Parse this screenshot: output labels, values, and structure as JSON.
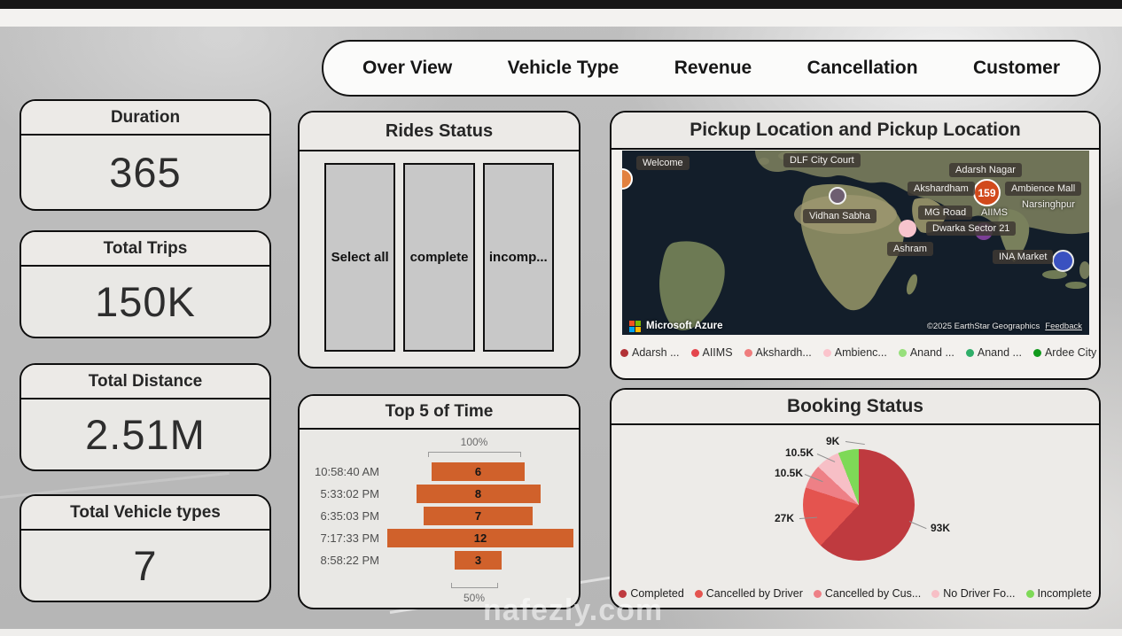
{
  "nav": {
    "tabs": [
      "Over View",
      "Vehicle Type",
      "Revenue",
      "Cancellation",
      "Customer"
    ]
  },
  "kpis": [
    {
      "title": "Duration",
      "value": "365"
    },
    {
      "title": "Total Trips",
      "value": "150K"
    },
    {
      "title": "Total Distance",
      "value": "2.51M"
    },
    {
      "title": "Total Vehicle types",
      "value": "7"
    }
  ],
  "panels": {
    "rides_status": {
      "title": "Rides Status",
      "options": [
        "Select all",
        "complete",
        "incomp..."
      ]
    },
    "map": {
      "title": "Pickup Location and Pickup Location",
      "labels": [
        "Welcome",
        "DLF City Court",
        "Adarsh Nagar",
        "Akshardham",
        "Ambience Mall",
        "Narsinghpur",
        "MG Road",
        "AIIMS",
        "Vidhan Sabha",
        "Dwarka Sector 21",
        "Ashram",
        "INA Market"
      ],
      "bubble_value": "159",
      "attribution": {
        "brand": "Microsoft Azure",
        "copyright": "©2025 EarthStar Geographics",
        "feedback": "Feedback"
      },
      "legend": [
        {
          "label": "Adarsh ...",
          "color": "#b23136"
        },
        {
          "label": "AIIMS",
          "color": "#e4464d"
        },
        {
          "label": "Akshardh...",
          "color": "#ef7d7d"
        },
        {
          "label": "Ambienc...",
          "color": "#fbc4cc"
        },
        {
          "label": "Anand ...",
          "color": "#97e07c"
        },
        {
          "label": "Anand ...",
          "color": "#2fae69"
        },
        {
          "label": "Ardee City",
          "color": "#119a1c"
        }
      ]
    },
    "top5": {
      "title": "Top 5 of Time"
    },
    "booking": {
      "title": "Booking Status"
    }
  },
  "chart_data": [
    {
      "type": "bar",
      "subtype": "funnel",
      "title": "Top 5 of Time",
      "categories": [
        "10:58:40 AM",
        "5:33:02 PM",
        "6:35:03 PM",
        "7:17:33 PM",
        "8:58:22 PM"
      ],
      "values": [
        6,
        8,
        7,
        12,
        3
      ],
      "top_label": "100%",
      "bottom_label": "50%",
      "bar_color": "#d0612b"
    },
    {
      "type": "pie",
      "title": "Booking Status",
      "legend_position": "bottom",
      "segments": [
        {
          "label": "Completed",
          "value": 93000,
          "display": "93K",
          "color": "#bf3a3f"
        },
        {
          "label": "Cancelled by Driver",
          "value": 27000,
          "display": "27K",
          "color": "#e4544f"
        },
        {
          "label": "Cancelled by Cus...",
          "value": 10500,
          "display": "10.5K",
          "color": "#ee8086"
        },
        {
          "label": "No Driver Fo...",
          "value": 10500,
          "display": "10.5K",
          "color": "#f7bfc6"
        },
        {
          "label": "Incomplete",
          "value": 9000,
          "display": "9K",
          "color": "#7ed957"
        }
      ]
    }
  ],
  "watermark": "nafezly.com"
}
